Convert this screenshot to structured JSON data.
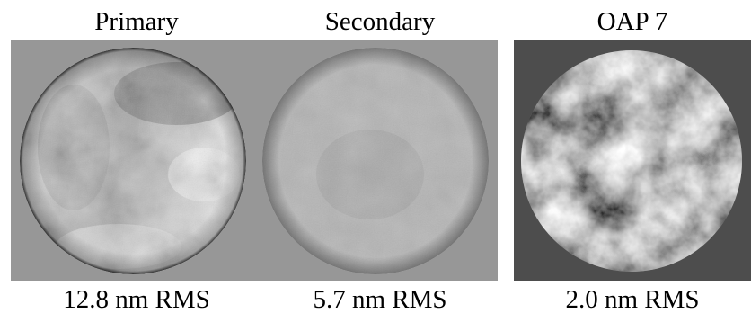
{
  "panels": [
    {
      "title": "Primary",
      "rms": "12.8 nm RMS"
    },
    {
      "title": "Secondary",
      "rms": "5.7 nm RMS"
    },
    {
      "title": "OAP 7",
      "rms": "2.0 nm RMS"
    }
  ],
  "colors": {
    "primary_background": "#979797",
    "oap_background": "#4d4d4d"
  }
}
